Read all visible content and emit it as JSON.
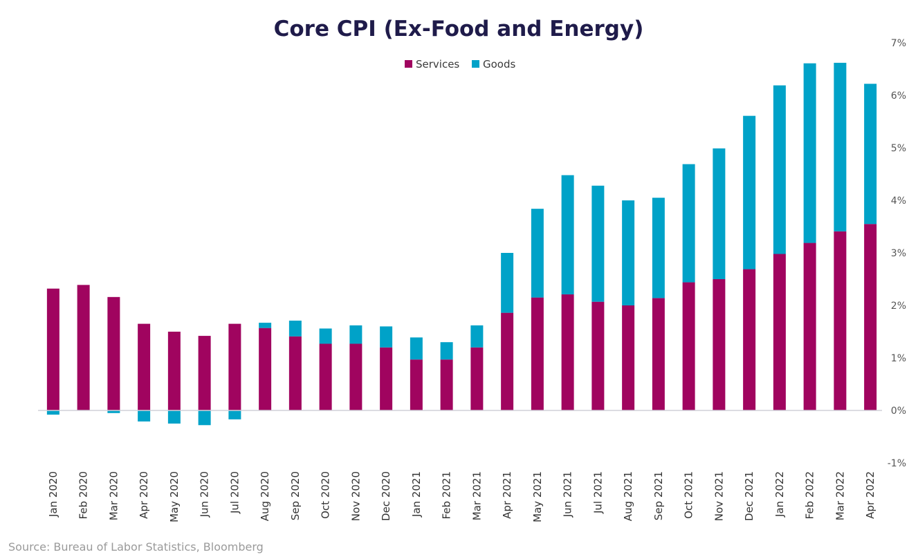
{
  "chart_data": {
    "type": "bar",
    "stacked": true,
    "title": "Core CPI (Ex-Food and Energy)",
    "source": "Source: Bureau of Labor Statistics, Bloomberg",
    "categories": [
      "Jan 2020",
      "Feb 2020",
      "Mar 2020",
      "Apr 2020",
      "May 2020",
      "Jun 2020",
      "Jul 2020",
      "Aug 2020",
      "Sep 2020",
      "Oct 2020",
      "Nov 2020",
      "Dec 2020",
      "Jan 2021",
      "Feb 2021",
      "Mar 2021",
      "Apr 2021",
      "May 2021",
      "Jun 2021",
      "Jul 2021",
      "Aug 2021",
      "Sep 2021",
      "Oct 2021",
      "Nov 2021",
      "Dec 2021",
      "Jan 2022",
      "Feb 2022",
      "Mar 2022",
      "Apr 2022"
    ],
    "series": [
      {
        "name": "Services",
        "color": "#a0045f",
        "values": [
          2.32,
          2.39,
          2.16,
          1.65,
          1.5,
          1.42,
          1.65,
          1.57,
          1.41,
          1.27,
          1.27,
          1.2,
          0.97,
          0.97,
          1.2,
          1.86,
          2.15,
          2.21,
          2.07,
          2.0,
          2.14,
          2.44,
          2.5,
          2.69,
          2.98,
          3.19,
          3.41,
          3.55
        ]
      },
      {
        "name": "Goods",
        "color": "#00a2c8",
        "values": [
          -0.08,
          0.0,
          -0.05,
          -0.21,
          -0.25,
          -0.28,
          -0.17,
          0.1,
          0.3,
          0.29,
          0.35,
          0.4,
          0.42,
          0.33,
          0.42,
          1.14,
          1.69,
          2.27,
          2.21,
          2.0,
          1.91,
          2.25,
          2.49,
          2.92,
          3.21,
          3.42,
          3.21,
          2.67
        ]
      }
    ],
    "y_ticks": [
      "7%",
      "6%",
      "5%",
      "4%",
      "3%",
      "2%",
      "1%",
      "0%",
      "-1%"
    ],
    "ylim": [
      -1,
      7
    ],
    "y_axis_position": "right",
    "legend_position": "top-center"
  }
}
